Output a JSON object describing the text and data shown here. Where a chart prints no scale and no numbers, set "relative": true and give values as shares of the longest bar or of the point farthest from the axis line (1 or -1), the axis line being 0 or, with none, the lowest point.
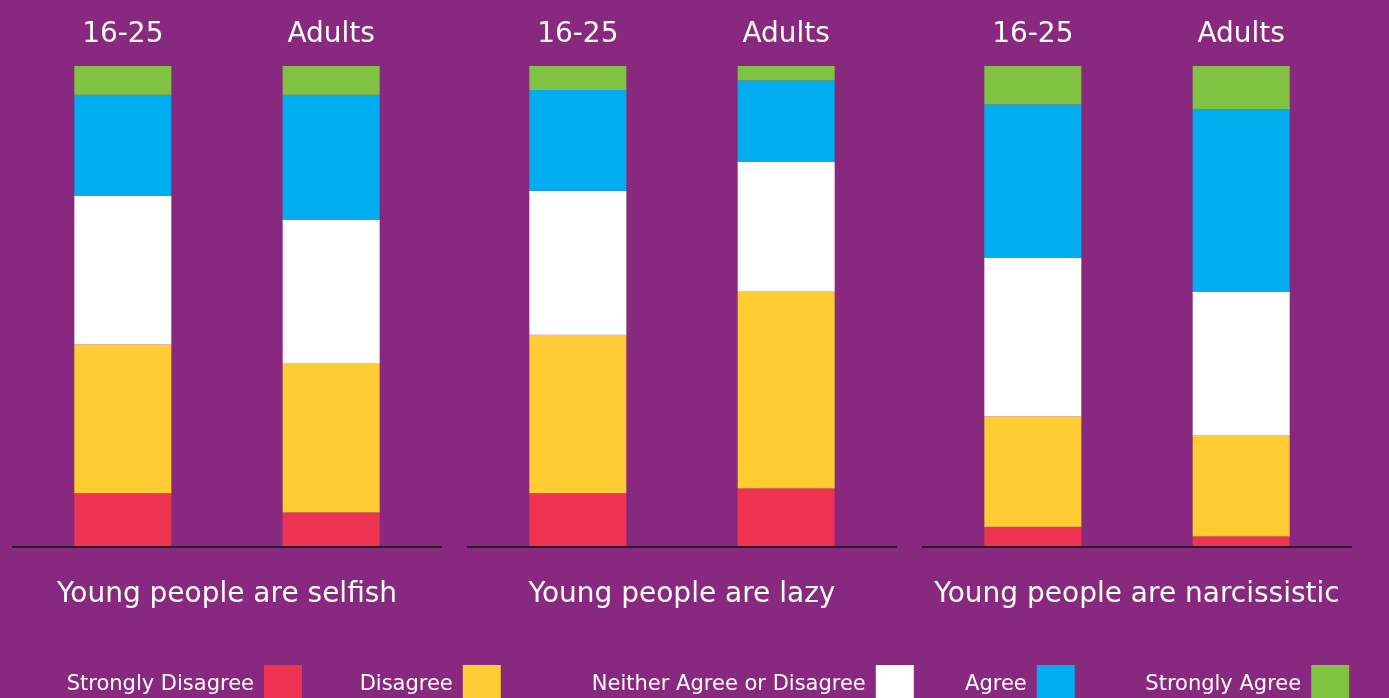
{
  "chart_data": [
    {
      "type": "bar",
      "stacked": true,
      "relative": true,
      "categories": [
        "16-25",
        "Adults"
      ],
      "xlabel": "Young people are selfish",
      "legend": "bottom",
      "series": [
        {
          "name": "Strongly Disagree",
          "color": "#ee3450",
          "values": [
            0.11,
            0.07
          ]
        },
        {
          "name": "Disagree",
          "color": "#ffcc33",
          "values": [
            0.31,
            0.31
          ]
        },
        {
          "name": "Neither Agree or Disagree",
          "color": "#ffffff",
          "values": [
            0.31,
            0.3
          ]
        },
        {
          "name": "Agree",
          "color": "#00adef",
          "values": [
            0.21,
            0.26
          ]
        },
        {
          "name": "Strongly Agree",
          "color": "#80c342",
          "values": [
            0.06,
            0.06
          ]
        }
      ]
    },
    {
      "type": "bar",
      "stacked": true,
      "relative": true,
      "categories": [
        "16-25",
        "Adults"
      ],
      "xlabel": "Young people are lazy",
      "series": [
        {
          "color": "#ee3450",
          "values": [
            0.11,
            0.12
          ]
        },
        {
          "color": "#ffcc33",
          "values": [
            0.33,
            0.41
          ]
        },
        {
          "color": "#ffffff",
          "values": [
            0.3,
            0.27
          ]
        },
        {
          "color": "#00adef",
          "values": [
            0.21,
            0.17
          ]
        },
        {
          "color": "#80c342",
          "values": [
            0.05,
            0.03
          ]
        }
      ]
    },
    {
      "type": "bar",
      "stacked": true,
      "relative": true,
      "categories": [
        "16-25",
        "Adults"
      ],
      "xlabel": "Young people are narcissistic",
      "series": [
        {
          "color": "#ee3450",
          "values": [
            0.04,
            0.02
          ]
        },
        {
          "color": "#ffcc33",
          "values": [
            0.23,
            0.21
          ]
        },
        {
          "color": "#ffffff",
          "values": [
            0.33,
            0.3
          ]
        },
        {
          "color": "#00adef",
          "values": [
            0.32,
            0.38
          ]
        },
        {
          "color": "#80c342",
          "values": [
            0.08,
            0.09
          ]
        }
      ]
    }
  ]
}
